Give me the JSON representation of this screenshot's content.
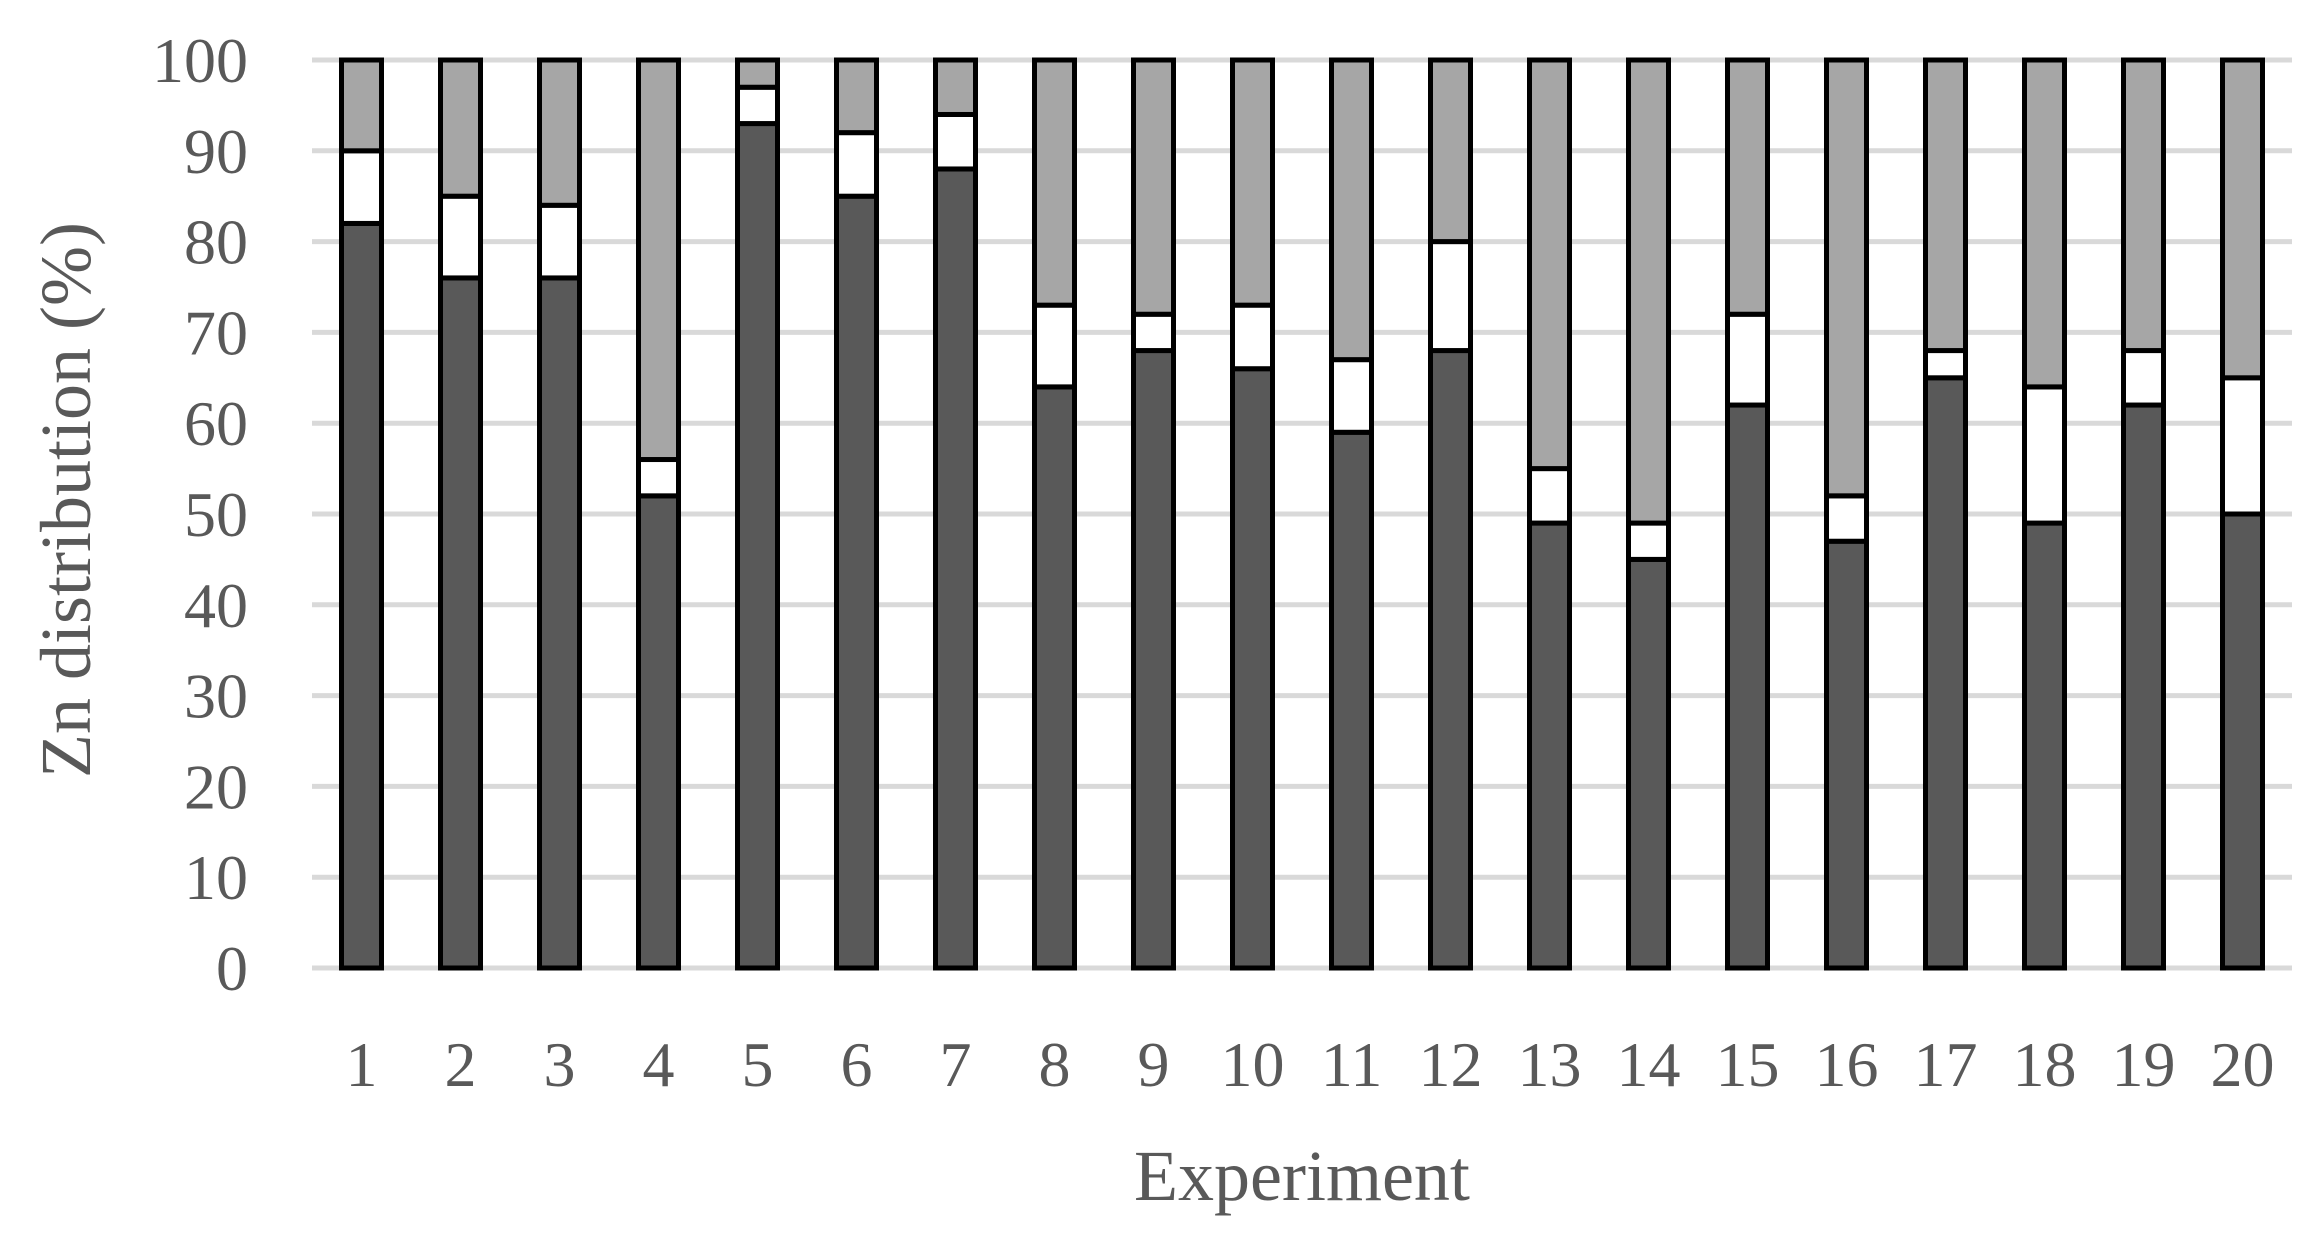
{
  "chart_data": {
    "type": "bar",
    "stacked": true,
    "title": "",
    "xlabel": "Experiment",
    "ylabel": "Zn distribution (%)",
    "ylim": [
      0,
      100
    ],
    "yticks": [
      "0",
      "10",
      "20",
      "30",
      "40",
      "50",
      "60",
      "70",
      "80",
      "90",
      "100"
    ],
    "categories": [
      "1",
      "2",
      "3",
      "4",
      "5",
      "6",
      "7",
      "8",
      "9",
      "10",
      "11",
      "12",
      "13",
      "14",
      "15",
      "16",
      "17",
      "18",
      "19",
      "20"
    ],
    "grid": true,
    "legend": "none",
    "series": [
      {
        "color": "#595959",
        "values": [
          82,
          76,
          76,
          52,
          93,
          85,
          88,
          64,
          68,
          66,
          59,
          68,
          49,
          45,
          62,
          47,
          65,
          49,
          62,
          50
        ]
      },
      {
        "color": "#ffffff",
        "values": [
          8,
          9,
          8,
          4,
          4,
          7,
          6,
          9,
          4,
          7,
          8,
          12,
          6,
          4,
          10,
          5,
          3,
          15,
          6,
          15
        ]
      },
      {
        "color": "#a6a6a6",
        "values": [
          10,
          15,
          16,
          44,
          3,
          8,
          6,
          27,
          28,
          27,
          33,
          20,
          45,
          51,
          28,
          48,
          32,
          36,
          32,
          35
        ]
      }
    ]
  }
}
